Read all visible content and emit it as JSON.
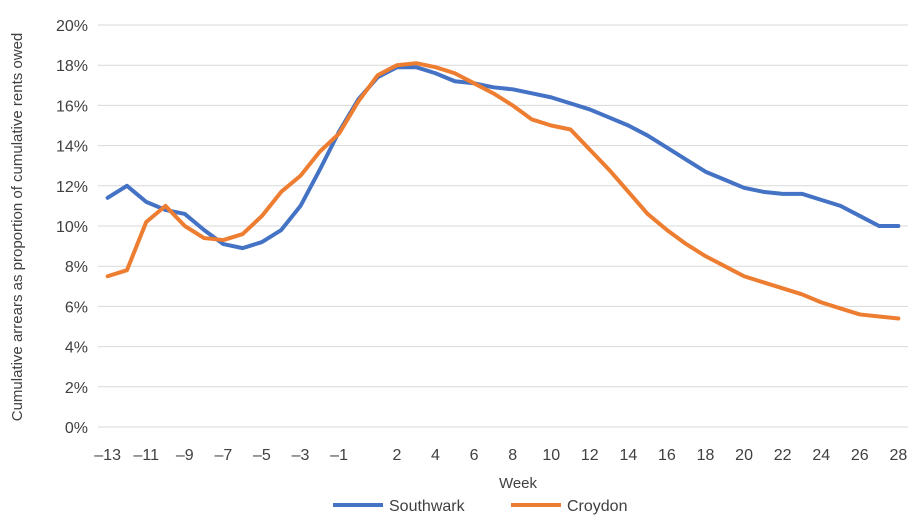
{
  "chart_data": {
    "type": "line",
    "title": "",
    "xlabel": "Week",
    "ylabel": "Cumulative arrears as proportion of cumulative rents owed",
    "x": [
      -13,
      -12,
      -11,
      -10,
      -9,
      -8,
      -7,
      -6,
      -5,
      -4,
      -3,
      -2,
      -1,
      0,
      1,
      2,
      3,
      4,
      5,
      6,
      7,
      8,
      9,
      10,
      11,
      12,
      13,
      14,
      15,
      16,
      17,
      18,
      19,
      20,
      21,
      22,
      23,
      24,
      25,
      26,
      27,
      28
    ],
    "x_tick_labels": [
      "-13",
      "-11",
      "-9",
      "-7",
      "-5",
      "-3",
      "-1",
      "2",
      "4",
      "6",
      "8",
      "10",
      "12",
      "14",
      "16",
      "18",
      "20",
      "22",
      "24",
      "26",
      "28"
    ],
    "y_tick_labels": [
      "0%",
      "2%",
      "4%",
      "6%",
      "8%",
      "10%",
      "12%",
      "14%",
      "16%",
      "18%",
      "20%"
    ],
    "ylim": [
      0,
      20
    ],
    "y_unit": "%",
    "grid": true,
    "legend_position": "bottom",
    "series": [
      {
        "name": "Southwark",
        "color": "#4472c4",
        "values": [
          11.4,
          12.0,
          11.2,
          10.8,
          10.6,
          9.8,
          9.1,
          8.9,
          9.2,
          9.8,
          11.0,
          12.8,
          14.7,
          16.3,
          17.4,
          17.9,
          17.9,
          17.6,
          17.2,
          17.1,
          16.9,
          16.8,
          16.6,
          16.4,
          16.1,
          15.8,
          15.4,
          15.0,
          14.5,
          13.9,
          13.3,
          12.7,
          12.3,
          11.9,
          11.7,
          11.6,
          11.6,
          11.3,
          11.0,
          10.5,
          10.0,
          10.0
        ]
      },
      {
        "name": "Croydon",
        "color": "#ed7d31",
        "values": [
          7.5,
          7.8,
          10.2,
          11.0,
          10.0,
          9.4,
          9.3,
          9.6,
          10.5,
          11.7,
          12.5,
          13.7,
          14.6,
          16.2,
          17.5,
          18.0,
          18.1,
          17.9,
          17.6,
          17.1,
          16.6,
          16.0,
          15.3,
          15.0,
          14.8,
          13.8,
          12.8,
          11.7,
          10.6,
          9.8,
          9.1,
          8.5,
          8.0,
          7.5,
          7.2,
          6.9,
          6.6,
          6.2,
          5.9,
          5.6,
          5.5,
          5.4
        ]
      }
    ]
  }
}
